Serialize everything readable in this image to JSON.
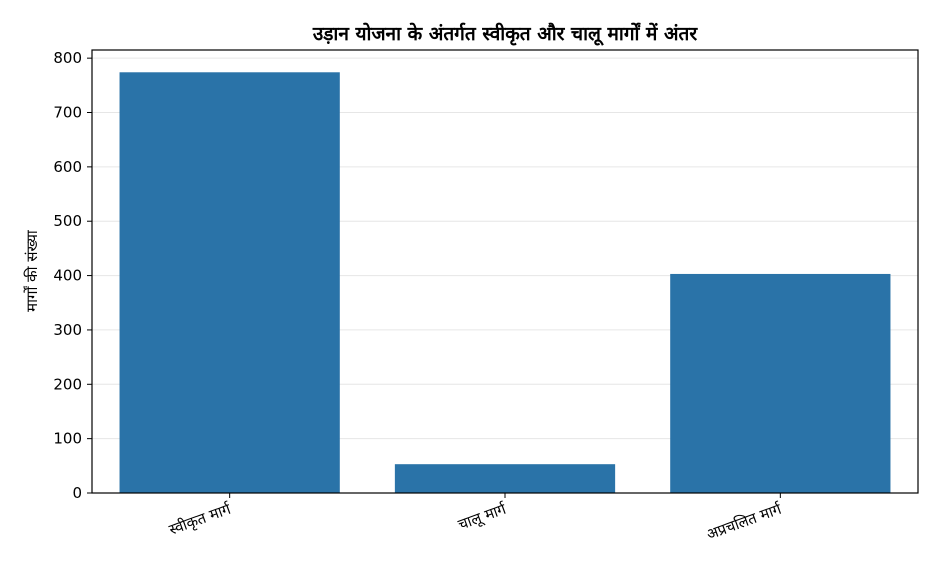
{
  "chart_data": {
    "type": "bar",
    "title": "उड़ान योजना के अंतर्गत स्वीकृत और चालू मार्गों में अंतर",
    "xlabel": "",
    "ylabel": "मार्गों की संख्या",
    "categories": [
      "स्वीकृत मार्ग",
      "चालू मार्ग",
      "अप्रचलित मार्ग"
    ],
    "values": [
      774,
      53,
      403
    ],
    "ylim": [
      0,
      815
    ],
    "yticks": [
      0,
      100,
      200,
      300,
      400,
      500,
      600,
      700,
      800
    ],
    "grid": "y",
    "legend": "none",
    "colors": {
      "bar": "#2a73a8",
      "grid": "#e6e6e6",
      "axis": "#000000"
    }
  }
}
